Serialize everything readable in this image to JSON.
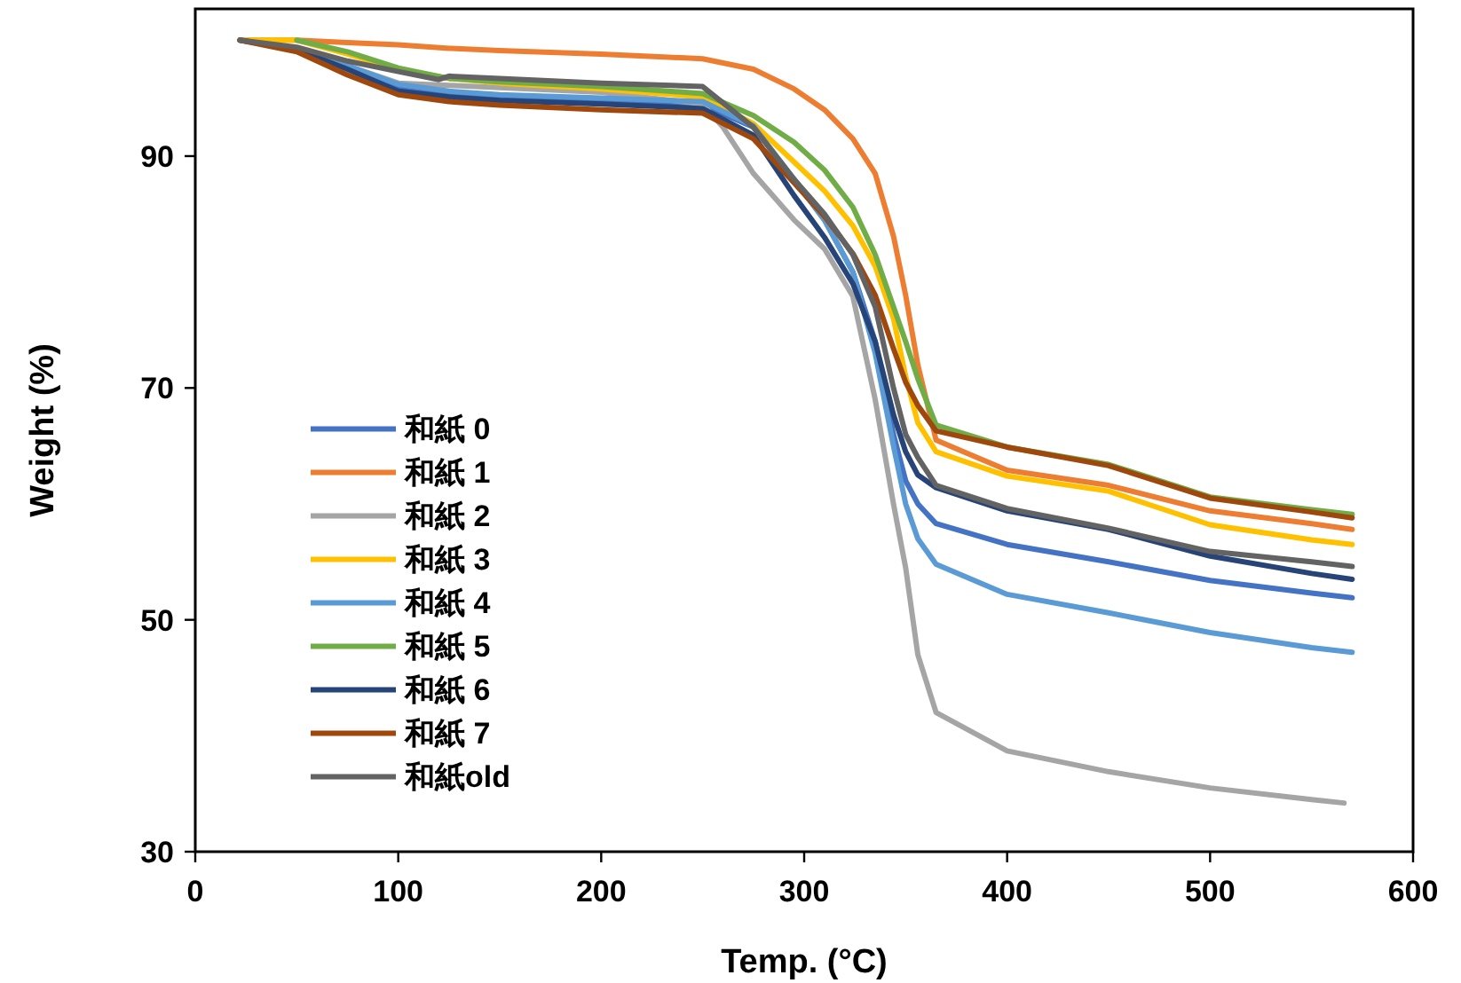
{
  "chart_data": {
    "type": "line",
    "xlabel": "Temp. (°C)",
    "ylabel": "Weight (%)",
    "xlim": [
      0,
      600
    ],
    "xticks": [
      0,
      100,
      200,
      300,
      400,
      500,
      600
    ],
    "ylim": [
      30,
      102.7
    ],
    "yticks": [
      30,
      50,
      70,
      90
    ],
    "grid": false,
    "legend": "bottom left",
    "line_style": "solid",
    "marker": "none",
    "series": [
      {
        "name": "和紙 0",
        "color": "#4472c4",
        "x": [
          50,
          75,
          100,
          125,
          150,
          200,
          250,
          275,
          295,
          310,
          324,
          335,
          344,
          350,
          356,
          365,
          400,
          450,
          500,
          550,
          570
        ],
        "values": [
          99.3,
          97.8,
          96.0,
          95.4,
          95.1,
          94.8,
          94.4,
          92.5,
          88,
          84.5,
          80,
          74,
          66,
          62,
          60,
          58.3,
          56.5,
          55.0,
          53.4,
          52.3,
          51.9
        ]
      },
      {
        "name": "和紙 1",
        "color": "#ed7d31",
        "x": [
          22,
          50,
          75,
          100,
          125,
          150,
          200,
          250,
          275,
          295,
          310,
          324,
          335,
          344,
          350,
          356,
          365,
          400,
          450,
          500,
          550,
          570
        ],
        "values": [
          100,
          100,
          99.8,
          99.6,
          99.3,
          99.1,
          98.8,
          98.4,
          97.5,
          95.8,
          94,
          91.5,
          88.5,
          83.1,
          78,
          72,
          65.5,
          62.9,
          61.6,
          59.4,
          58.3,
          57.8
        ]
      },
      {
        "name": "和紙 2",
        "color": "#a5a5a5",
        "x": [
          22,
          50,
          75,
          100,
          125,
          150,
          200,
          250,
          260,
          275,
          295,
          310,
          324,
          335,
          344,
          350,
          356,
          365,
          400,
          450,
          500,
          550,
          566
        ],
        "values": [
          100,
          99.2,
          97.8,
          96.3,
          96.1,
          95.9,
          95.5,
          94.5,
          92.5,
          88.5,
          84.5,
          82,
          77.9,
          69,
          60,
          54.5,
          47,
          42.0,
          38.7,
          36.9,
          35.5,
          34.5,
          34.2
        ]
      },
      {
        "name": "和紙 3",
        "color": "#ffc000",
        "x": [
          22,
          50,
          75,
          100,
          125,
          150,
          200,
          250,
          275,
          295,
          310,
          324,
          335,
          344,
          350,
          356,
          365,
          400,
          450,
          500,
          550,
          570
        ],
        "values": [
          100,
          100,
          98.8,
          97.5,
          96.7,
          96.3,
          95.8,
          95.1,
          92.8,
          89.5,
          87,
          84,
          80.5,
          76,
          71,
          67,
          64.5,
          62.4,
          61.1,
          58.2,
          56.9,
          56.5
        ]
      },
      {
        "name": "和紙 4",
        "color": "#5b9bd5",
        "x": [
          50,
          75,
          100,
          125,
          150,
          200,
          250,
          275,
          295,
          310,
          324,
          335,
          344,
          350,
          356,
          365,
          400,
          450,
          500,
          550,
          570
        ],
        "values": [
          99.2,
          97.8,
          96.2,
          95.6,
          95.3,
          95.0,
          94.7,
          92.6,
          88,
          84.5,
          80,
          73,
          65,
          60,
          57,
          54.8,
          52.2,
          50.6,
          48.9,
          47.6,
          47.2
        ]
      },
      {
        "name": "和紙 5",
        "color": "#70ad47",
        "x": [
          50,
          75,
          100,
          125,
          150,
          200,
          250,
          275,
          295,
          310,
          324,
          335,
          344,
          350,
          356,
          365,
          400,
          450,
          500,
          550,
          570
        ],
        "values": [
          100,
          99,
          97.6,
          96.7,
          96.4,
          96.0,
          95.4,
          93.5,
          91.2,
          88.8,
          85.6,
          81.5,
          77,
          74,
          70.8,
          66.8,
          64.9,
          63.4,
          60.6,
          59.5,
          59.1
        ]
      },
      {
        "name": "和紙 6",
        "color": "#264478",
        "x": [
          22,
          50,
          75,
          100,
          125,
          150,
          200,
          250,
          275,
          295,
          310,
          324,
          335,
          344,
          350,
          356,
          365,
          400,
          450,
          500,
          550,
          570
        ],
        "values": [
          100,
          99.2,
          97.5,
          95.6,
          95.1,
          94.8,
          94.5,
          94.1,
          91.8,
          86.6,
          83,
          79,
          74,
          67.7,
          64.5,
          62.5,
          61.4,
          59.4,
          57.8,
          55.5,
          54,
          53.5
        ]
      },
      {
        "name": "和紙 7",
        "color": "#9e480e",
        "x": [
          22,
          50,
          75,
          100,
          125,
          150,
          200,
          250,
          275,
          295,
          310,
          324,
          335,
          344,
          350,
          356,
          365,
          400,
          450,
          500,
          550,
          570
        ],
        "values": [
          100,
          99,
          97,
          95.3,
          94.7,
          94.4,
          94.0,
          93.7,
          91.5,
          87.7,
          84.8,
          81.6,
          78,
          73.4,
          70.5,
          68.5,
          66.3,
          64.9,
          63.3,
          60.5,
          59.3,
          58.8
        ]
      },
      {
        "name": "和紙old",
        "color": "#636363",
        "x": [
          22,
          50,
          75,
          100,
          120,
          125,
          150,
          200,
          250,
          275,
          295,
          310,
          324,
          335,
          344,
          350,
          356,
          365,
          400,
          450,
          500,
          550,
          570
        ],
        "values": [
          100,
          99.4,
          98.2,
          97.3,
          96.6,
          96.9,
          96.7,
          96.3,
          96.0,
          92.5,
          88,
          85,
          81.5,
          77,
          70,
          66,
          64,
          61.6,
          59.6,
          57.9,
          55.9,
          55,
          54.6
        ]
      }
    ]
  }
}
